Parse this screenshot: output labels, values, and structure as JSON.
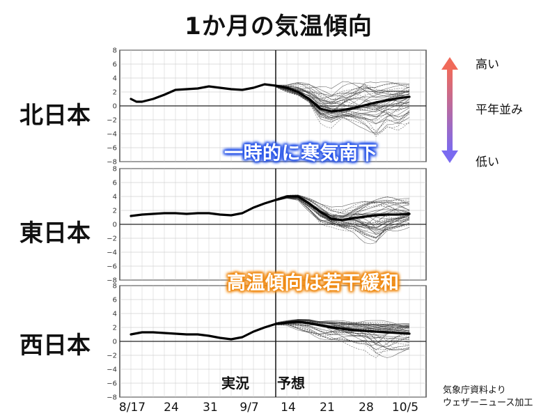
{
  "title": "1か月の気温傾向",
  "regions": [
    "北日本",
    "東日本",
    "西日本"
  ],
  "legend": {
    "high": "高い",
    "normal": "平年並み",
    "low": "低い",
    "gradient_top": "#f06a5a",
    "gradient_bottom": "#7a6af0"
  },
  "callouts": {
    "north": "一時的に寒気南下",
    "east_west": "高温傾向は若干緩和"
  },
  "phases": {
    "observed": "実況",
    "forecast": "予想"
  },
  "source": [
    "気象庁資料より",
    "ウェザーニュース加工"
  ],
  "chart_data": [
    {
      "type": "line",
      "panel": "北日本",
      "x_ticks": [
        "8/17",
        "24",
        "31",
        "9/7",
        "14",
        "21",
        "28",
        "10/5"
      ],
      "y_ticks": [
        "8",
        "6",
        "4",
        "2",
        "0",
        "−2",
        "−4",
        "−6",
        "−8"
      ],
      "ylim": [
        -8,
        8
      ],
      "xlim_days": [
        -2,
        53
      ],
      "grid": true,
      "forecast_start_day": 26,
      "series": [
        {
          "role": "ensemble-mean",
          "x": [
            0,
            1,
            2,
            4,
            6,
            8,
            10,
            12,
            14,
            16,
            18,
            20,
            22,
            24,
            26,
            28,
            30,
            32,
            34,
            36,
            38,
            40,
            42,
            44,
            46,
            48,
            50
          ],
          "values": [
            1.0,
            0.6,
            0.6,
            1.0,
            1.6,
            2.3,
            2.4,
            2.5,
            2.8,
            2.6,
            2.4,
            2.3,
            2.6,
            3.1,
            2.9,
            2.6,
            2.0,
            1.0,
            -0.4,
            -0.8,
            -0.6,
            -0.3,
            0.1,
            0.5,
            0.8,
            1.1,
            1.3
          ]
        },
        {
          "role": "ensemble-spread",
          "x": [
            26,
            28,
            30,
            32,
            34,
            36,
            38,
            40,
            42,
            44,
            46,
            48,
            50
          ],
          "upper": [
            3.0,
            3.0,
            3.5,
            3.5,
            3.0,
            2.5,
            3.5,
            4.0,
            4.5,
            3.5,
            3.5,
            3.5,
            3.5
          ],
          "lower": [
            2.7,
            2.0,
            1.5,
            0.5,
            -2.5,
            -3.5,
            -2.5,
            -3.0,
            -3.5,
            -4.5,
            -3.0,
            -3.5,
            -2.5
          ]
        }
      ]
    },
    {
      "type": "line",
      "panel": "東日本",
      "x_ticks": [
        "8/17",
        "24",
        "31",
        "9/7",
        "14",
        "21",
        "28",
        "10/5"
      ],
      "y_ticks": [
        "8",
        "6",
        "4",
        "2",
        "0",
        "−2",
        "−4",
        "−6",
        "−8"
      ],
      "ylim": [
        -8,
        8
      ],
      "xlim_days": [
        -2,
        53
      ],
      "grid": true,
      "forecast_start_day": 26,
      "series": [
        {
          "role": "ensemble-mean",
          "x": [
            0,
            2,
            4,
            6,
            8,
            10,
            12,
            14,
            16,
            18,
            20,
            22,
            24,
            26,
            28,
            30,
            32,
            34,
            36,
            38,
            40,
            42,
            44,
            46,
            48,
            50
          ],
          "values": [
            1.2,
            1.4,
            1.5,
            1.6,
            1.6,
            1.5,
            1.6,
            1.6,
            1.4,
            1.3,
            1.6,
            2.4,
            3.0,
            3.5,
            4.0,
            4.0,
            3.0,
            1.8,
            0.8,
            0.6,
            0.9,
            1.1,
            1.3,
            1.4,
            1.4,
            1.5
          ]
        },
        {
          "role": "ensemble-spread",
          "x": [
            26,
            28,
            30,
            32,
            34,
            36,
            38,
            40,
            42,
            44,
            46,
            48,
            50
          ],
          "upper": [
            3.7,
            4.2,
            4.3,
            4.0,
            3.5,
            3.0,
            3.0,
            3.5,
            4.0,
            4.2,
            4.5,
            4.5,
            4.5
          ],
          "lower": [
            3.3,
            3.6,
            3.3,
            1.5,
            -0.5,
            -0.5,
            -1.0,
            -1.5,
            -3.0,
            -4.0,
            -2.0,
            -1.5,
            -1.0
          ]
        }
      ]
    },
    {
      "type": "line",
      "panel": "西日本",
      "x_ticks": [
        "8/17",
        "24",
        "31",
        "9/7",
        "14",
        "21",
        "28",
        "10/5"
      ],
      "y_ticks": [
        "8",
        "6",
        "4",
        "2",
        "0",
        "−2",
        "−4",
        "−6",
        "−8"
      ],
      "ylim": [
        -8,
        8
      ],
      "xlim_days": [
        -2,
        53
      ],
      "grid": true,
      "forecast_start_day": 26,
      "series": [
        {
          "role": "ensemble-mean",
          "x": [
            0,
            2,
            4,
            6,
            8,
            10,
            12,
            14,
            16,
            18,
            20,
            22,
            24,
            26,
            28,
            30,
            32,
            34,
            36,
            38,
            40,
            42,
            44,
            46,
            48,
            50
          ],
          "values": [
            1.0,
            1.3,
            1.3,
            1.2,
            1.1,
            1.0,
            1.0,
            0.8,
            0.5,
            0.3,
            0.6,
            1.4,
            2.0,
            2.5,
            2.7,
            2.8,
            2.6,
            2.3,
            2.0,
            1.8,
            1.6,
            1.5,
            1.4,
            1.3,
            1.2,
            1.1
          ]
        },
        {
          "role": "ensemble-spread",
          "x": [
            26,
            28,
            30,
            32,
            34,
            36,
            38,
            40,
            42,
            44,
            46,
            48,
            50
          ],
          "upper": [
            2.7,
            3.0,
            3.3,
            3.3,
            3.0,
            3.0,
            3.0,
            3.0,
            3.0,
            3.0,
            3.0,
            3.0,
            3.0
          ],
          "lower": [
            2.3,
            2.2,
            1.5,
            1.0,
            0.0,
            -0.5,
            -0.5,
            -1.0,
            -1.5,
            -3.5,
            -3.0,
            -2.0,
            -1.5
          ]
        }
      ]
    }
  ]
}
